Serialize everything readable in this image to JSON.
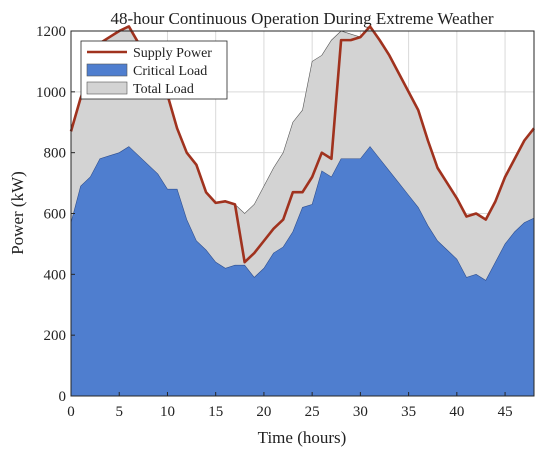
{
  "chart_data": {
    "type": "area",
    "title": "48-hour Continuous Operation During Extreme Weather",
    "xlabel": "Time (hours)",
    "ylabel": "Power (kW)",
    "xlim": [
      0,
      48
    ],
    "ylim": [
      0,
      1200
    ],
    "xticks": [
      0,
      5,
      10,
      15,
      20,
      25,
      30,
      35,
      40,
      45
    ],
    "yticks": [
      0,
      200,
      400,
      600,
      800,
      1000,
      1200
    ],
    "grid": true,
    "legend_position": "top-left",
    "x": [
      0,
      1,
      2,
      3,
      4,
      5,
      6,
      7,
      8,
      9,
      10,
      11,
      12,
      13,
      14,
      15,
      16,
      17,
      18,
      19,
      20,
      21,
      22,
      23,
      24,
      25,
      26,
      27,
      28,
      29,
      30,
      31,
      32,
      33,
      34,
      35,
      36,
      37,
      38,
      39,
      40,
      41,
      42,
      43,
      44,
      45,
      46,
      47,
      48
    ],
    "series": [
      {
        "name": "Supply Power",
        "kind": "line",
        "color": "#a0321e",
        "values": [
          870,
          980,
          1060,
          1160,
          1180,
          1200,
          1215,
          1160,
          1140,
          1100,
          990,
          880,
          800,
          760,
          670,
          635,
          640,
          630,
          440,
          470,
          510,
          550,
          580,
          670,
          670,
          720,
          800,
          780,
          1170,
          1170,
          1180,
          1215,
          1170,
          1120,
          1060,
          1000,
          940,
          840,
          750,
          700,
          650,
          590,
          600,
          580,
          640,
          720,
          780,
          840,
          880
        ]
      },
      {
        "name": "Critical Load",
        "kind": "area",
        "color": "#4f7ecf",
        "values": [
          570,
          690,
          720,
          780,
          790,
          800,
          820,
          790,
          760,
          730,
          680,
          680,
          580,
          510,
          480,
          440,
          420,
          430,
          430,
          390,
          420,
          470,
          490,
          540,
          620,
          630,
          740,
          720,
          780,
          780,
          780,
          820,
          780,
          740,
          700,
          660,
          620,
          560,
          510,
          480,
          450,
          390,
          400,
          380,
          440,
          500,
          540,
          570,
          585
        ]
      },
      {
        "name": "Total Load",
        "kind": "area",
        "color": "#d3d3d3",
        "values": [
          870,
          980,
          1060,
          1160,
          1180,
          1200,
          1215,
          1160,
          1140,
          1100,
          990,
          880,
          800,
          760,
          670,
          635,
          640,
          630,
          600,
          630,
          690,
          750,
          800,
          900,
          940,
          1100,
          1120,
          1170,
          1200,
          1190,
          1180,
          1215,
          1170,
          1120,
          1060,
          1000,
          940,
          840,
          750,
          700,
          650,
          590,
          600,
          580,
          640,
          720,
          780,
          840,
          880
        ]
      }
    ]
  }
}
